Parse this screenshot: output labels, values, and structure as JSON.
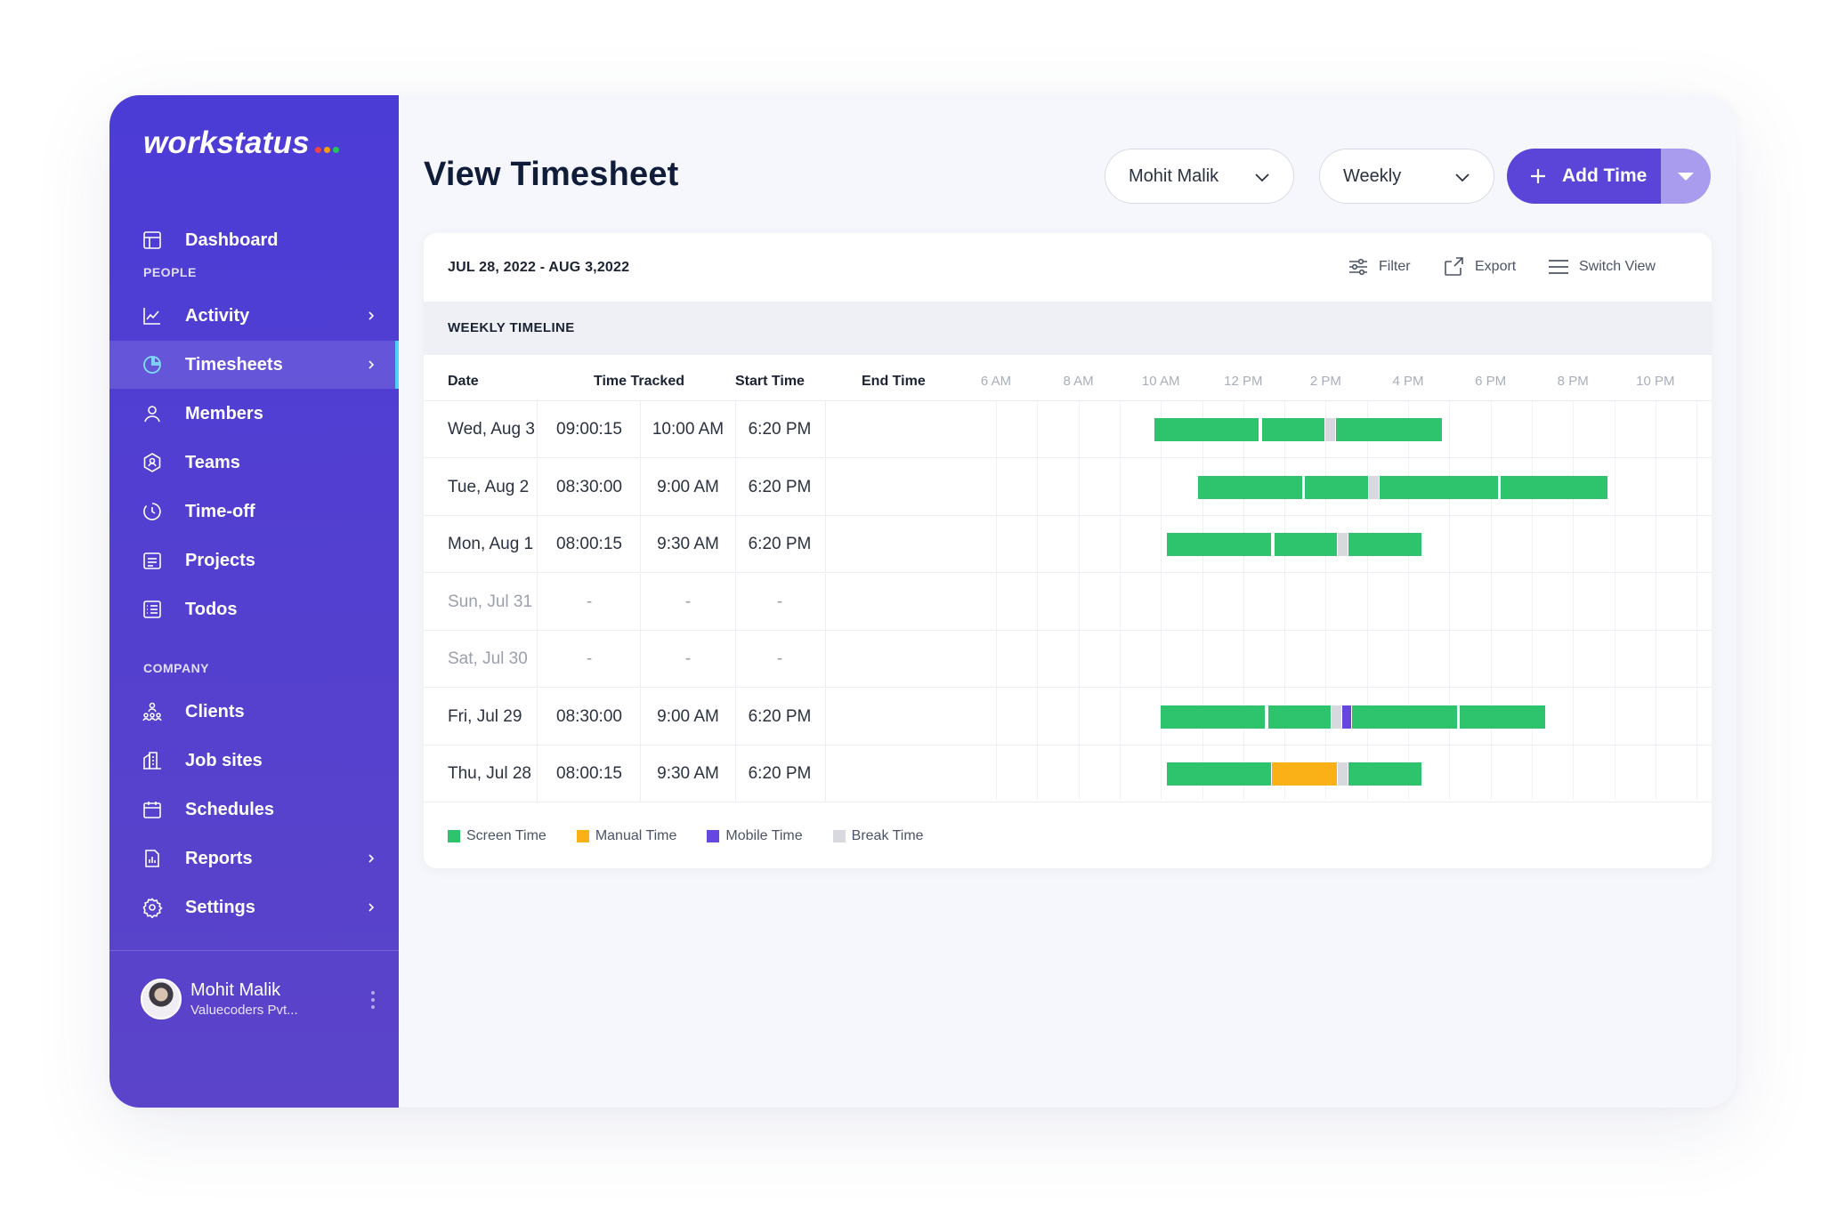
{
  "app": {
    "logo": "workstatus",
    "logo_dots": [
      "#ef4444",
      "#f59e0b",
      "#22c55e"
    ],
    "colors": {
      "accent": "#5a45d8",
      "sidebar": "#4c3cd6",
      "screen": "#2ec46d",
      "manual": "#f9b117",
      "mobile": "#6546de",
      "break": "#d7d9de"
    }
  },
  "sidebar": {
    "dashboard": {
      "label": "Dashboard",
      "icon": "layout-icon"
    },
    "people_heading": "PEOPLE",
    "activity": {
      "label": "Activity",
      "icon": "chart-line-icon"
    },
    "timesheets": {
      "label": "Timesheets",
      "icon": "pie-chart-icon"
    },
    "members": {
      "label": "Members",
      "icon": "user-icon"
    },
    "teams": {
      "label": "Teams",
      "icon": "teams-icon"
    },
    "timeoff": {
      "label": "Time-off",
      "icon": "timer-icon"
    },
    "projects": {
      "label": "Projects",
      "icon": "projects-icon"
    },
    "todos": {
      "label": "Todos",
      "icon": "checklist-icon"
    },
    "company_heading": "COMPANY",
    "clients": {
      "label": "Clients",
      "icon": "clients-icon"
    },
    "jobsites": {
      "label": "Job sites",
      "icon": "building-icon"
    },
    "schedules": {
      "label": "Schedules",
      "icon": "calendar-icon"
    },
    "reports": {
      "label": "Reports",
      "icon": "report-icon"
    },
    "settings": {
      "label": "Settings",
      "icon": "gear-icon"
    },
    "user": {
      "name": "Mohit Malik",
      "org": "Valuecoders Pvt..."
    }
  },
  "header": {
    "title": "View Timesheet",
    "member_select": "Mohit Malik",
    "period_select": "Weekly",
    "add_time": "Add Time"
  },
  "card": {
    "date_range": "JUL 28, 2022 - AUG 3,2022",
    "filter": "Filter",
    "export": "Export",
    "switch_view": "Switch View",
    "section_title": "WEEKLY TIMELINE",
    "columns": {
      "date": "Date",
      "tracked": "Time Tracked",
      "start": "Start Time",
      "end": "End Time"
    },
    "timeline_ticks": [
      "6 AM",
      "8 AM",
      "10 AM",
      "12 PM",
      "2 PM",
      "4 PM",
      "6 PM",
      "8 PM",
      "10 PM"
    ],
    "rows": [
      {
        "date": "Wed, Aug 3",
        "tracked": "09:00:15",
        "start": "10:00 AM",
        "end": "6:20 PM",
        "muted": false,
        "segments": [
          [
            "screen",
            9.85,
            12.4
          ],
          [
            "screen",
            12.45,
            14.0
          ],
          [
            "break",
            14.0,
            14.25
          ],
          [
            "screen",
            14.25,
            16.85
          ]
        ]
      },
      {
        "date": "Tue, Aug 2",
        "tracked": "08:30:00",
        "start": "9:00 AM",
        "end": "6:20 PM",
        "muted": false,
        "segments": [
          [
            "screen",
            10.9,
            13.45
          ],
          [
            "screen",
            13.5,
            15.05
          ],
          [
            "break",
            15.05,
            15.3
          ],
          [
            "screen",
            15.3,
            18.2
          ],
          [
            "screen",
            18.25,
            20.85
          ]
        ]
      },
      {
        "date": "Mon, Aug 1",
        "tracked": "08:00:15",
        "start": "9:30 AM",
        "end": "6:20 PM",
        "muted": false,
        "segments": [
          [
            "screen",
            10.15,
            12.7
          ],
          [
            "screen",
            12.75,
            14.3
          ],
          [
            "break",
            14.3,
            14.55
          ],
          [
            "screen",
            14.55,
            16.35
          ]
        ]
      },
      {
        "date": "Sun, Jul 31",
        "tracked": "-",
        "start": "-",
        "end": "-",
        "muted": true,
        "segments": []
      },
      {
        "date": "Sat, Jul 30",
        "tracked": "-",
        "start": "-",
        "end": "-",
        "muted": true,
        "segments": []
      },
      {
        "date": "Fri, Jul 29",
        "tracked": "08:30:00",
        "start": "9:00 AM",
        "end": "6:20 PM",
        "muted": false,
        "segments": [
          [
            "screen",
            10.0,
            12.55
          ],
          [
            "screen",
            12.6,
            14.15
          ],
          [
            "break",
            14.15,
            14.4
          ],
          [
            "mobile",
            14.4,
            14.65
          ],
          [
            "screen",
            14.65,
            17.2
          ],
          [
            "screen",
            17.25,
            19.35
          ]
        ]
      },
      {
        "date": "Thu, Jul 28",
        "tracked": "08:00:15",
        "start": "9:30 AM",
        "end": "6:20 PM",
        "muted": false,
        "segments": [
          [
            "screen",
            10.15,
            12.7
          ],
          [
            "manual",
            12.7,
            14.3
          ],
          [
            "break",
            14.3,
            14.55
          ],
          [
            "screen",
            14.55,
            16.35
          ]
        ]
      }
    ],
    "legend": [
      {
        "key": "screen",
        "label": "Screen Time"
      },
      {
        "key": "manual",
        "label": "Manual Time"
      },
      {
        "key": "mobile",
        "label": "Mobile Time"
      },
      {
        "key": "break",
        "label": "Break Time"
      }
    ]
  }
}
